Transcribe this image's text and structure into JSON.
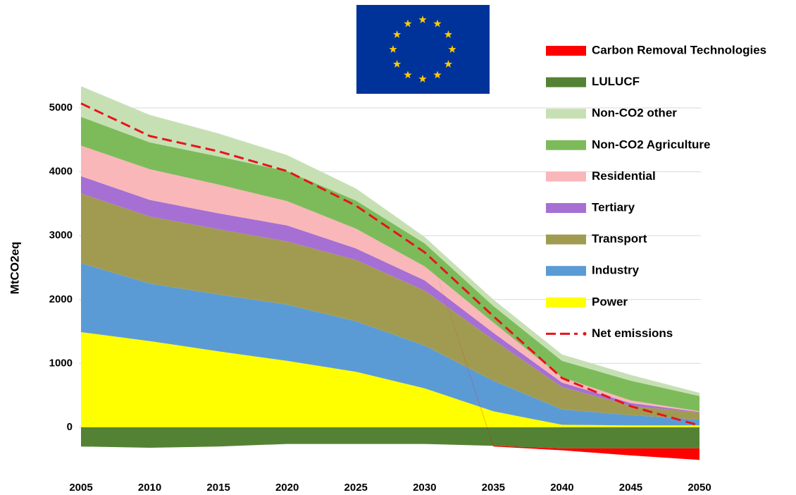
{
  "chart_data": {
    "type": "area",
    "stacked": true,
    "y_label": "MtCO2eq",
    "x": [
      2005,
      2010,
      2015,
      2020,
      2025,
      2030,
      2035,
      2040,
      2045,
      2050
    ],
    "xlim": [
      2005,
      2050
    ],
    "xticks": [
      2005,
      2010,
      2015,
      2020,
      2025,
      2030,
      2035,
      2040,
      2045,
      2050
    ],
    "ylim": [
      -700,
      5400
    ],
    "yticks": [
      0,
      1000,
      2000,
      3000,
      4000,
      5000
    ],
    "grid": true,
    "legend": "right",
    "series": [
      {
        "name": "Power",
        "color": "#ffff00",
        "values": [
          1490,
          1350,
          1190,
          1040,
          870,
          610,
          250,
          40,
          30,
          30
        ]
      },
      {
        "name": "Industry",
        "color": "#5b9bd5",
        "values": [
          1080,
          900,
          890,
          880,
          790,
          670,
          480,
          240,
          160,
          90
        ]
      },
      {
        "name": "Transport",
        "color": "#a19b52",
        "values": [
          1090,
          1050,
          1020,
          990,
          960,
          860,
          640,
          350,
          150,
          110
        ]
      },
      {
        "name": "Tertiary",
        "color": "#a66fd4",
        "values": [
          270,
          260,
          250,
          250,
          180,
          160,
          110,
          70,
          40,
          10
        ]
      },
      {
        "name": "Residential",
        "color": "#f9b7b9",
        "values": [
          480,
          480,
          450,
          380,
          310,
          220,
          160,
          80,
          40,
          10
        ]
      },
      {
        "name": "Non-CO2 Agriculture",
        "color": "#7dbb5a",
        "values": [
          450,
          420,
          440,
          470,
          440,
          360,
          260,
          260,
          310,
          240
        ]
      },
      {
        "name": "Non-CO2 other",
        "color": "#c6e0b4",
        "values": [
          480,
          430,
          360,
          250,
          190,
          100,
          100,
          100,
          90,
          50
        ]
      },
      {
        "name": "LULUCF",
        "color": "#548235",
        "values": [
          -300,
          -320,
          -300,
          -260,
          -260,
          -260,
          -290,
          -330,
          -330,
          -330
        ]
      },
      {
        "name": "Carbon Removal Technologies",
        "color": "#ff0000",
        "values": [
          0,
          0,
          0,
          0,
          0,
          0,
          -10,
          -30,
          -110,
          -180
        ]
      },
      {
        "name": "Net emissions",
        "type": "line",
        "color": "#e8131b",
        "values": [
          5070,
          4560,
          4320,
          4010,
          3470,
          2740,
          1740,
          770,
          330,
          30
        ]
      }
    ]
  }
}
